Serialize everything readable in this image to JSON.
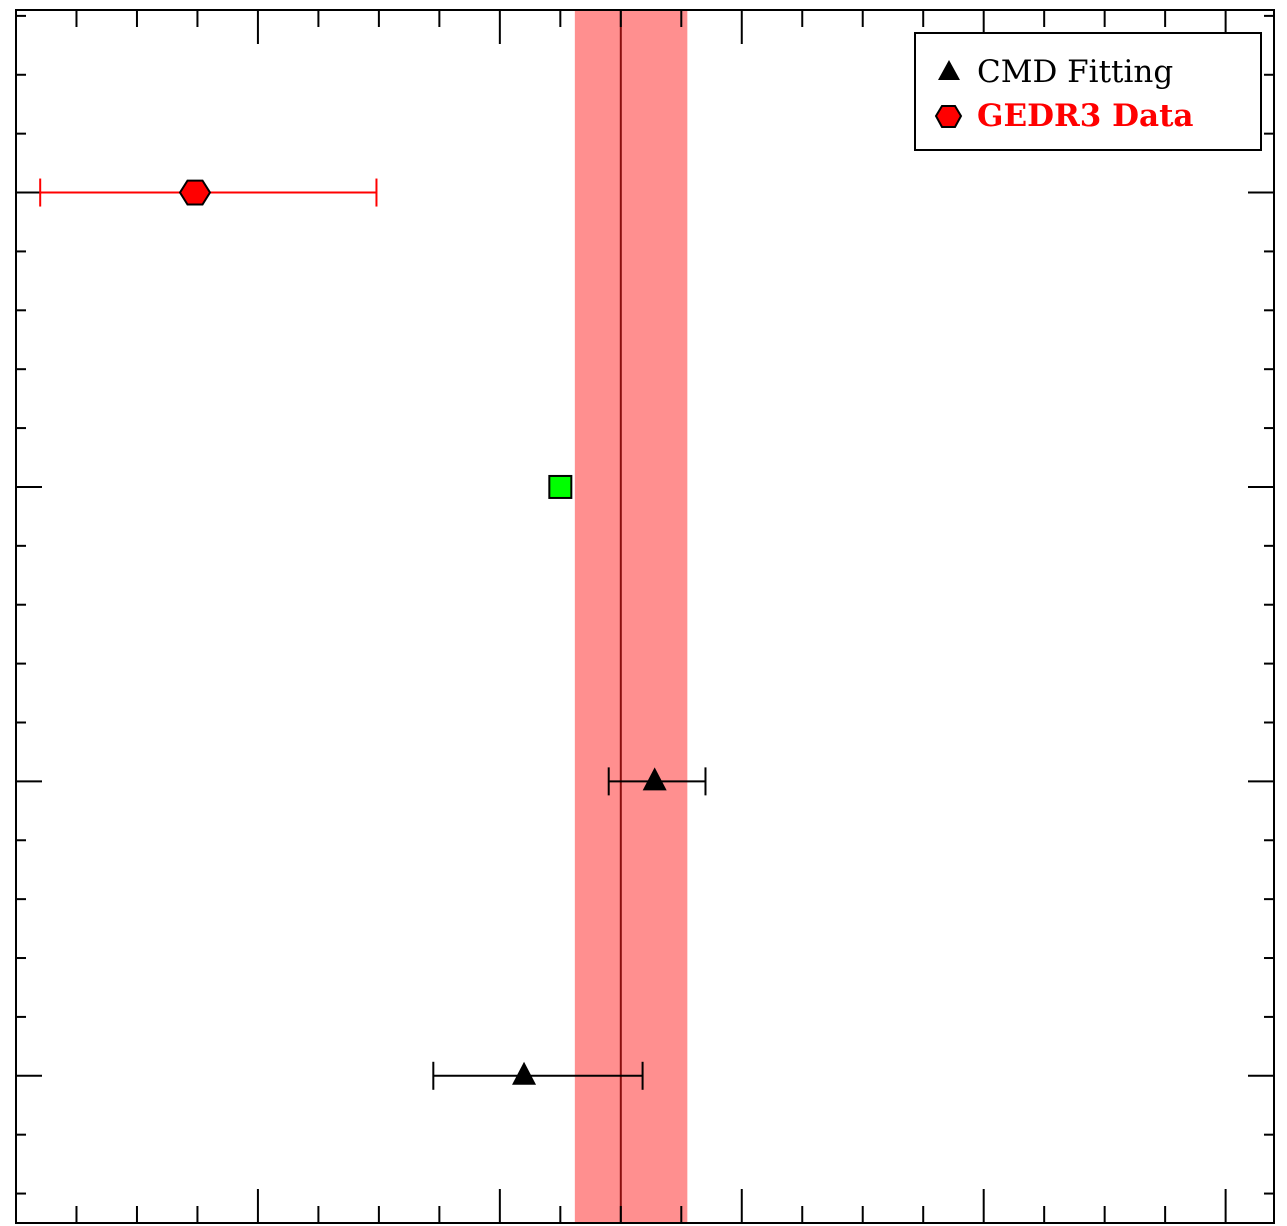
{
  "chart_data": {
    "type": "scatter",
    "title": "",
    "xlabel": "",
    "ylabel": "",
    "xlim": [
      0,
      10.4
    ],
    "ylim": [
      0,
      20.6
    ],
    "grid": false,
    "legend": {
      "placement": "top-right",
      "entries": [
        {
          "label": "CMD Fitting",
          "marker": "triangle",
          "color": "#000000"
        },
        {
          "label": "GEDR3 Data",
          "marker": "hexagon",
          "color": "#ff0000"
        }
      ]
    },
    "reference_band": {
      "center": 5.0,
      "low": 4.62,
      "high": 5.55,
      "color": "#ff8f8f"
    },
    "series": [
      {
        "marker": "triangle",
        "color": "#000000",
        "points": [
          {
            "x": 5.28,
            "xerr_low": 4.9,
            "xerr_high": 5.7,
            "y": 7.5
          },
          {
            "x": 4.2,
            "xerr_low": 3.45,
            "xerr_high": 5.18,
            "y": 2.5
          }
        ]
      },
      {
        "marker": "hexagon",
        "color": "#ff0000",
        "points": [
          {
            "x": 1.48,
            "xerr_low": 0.2,
            "xerr_high": 2.98,
            "y": 17.5
          }
        ]
      },
      {
        "marker": "square",
        "color": "#00ff00",
        "points": [
          {
            "x": 4.5,
            "y": 12.5
          }
        ]
      }
    ]
  }
}
